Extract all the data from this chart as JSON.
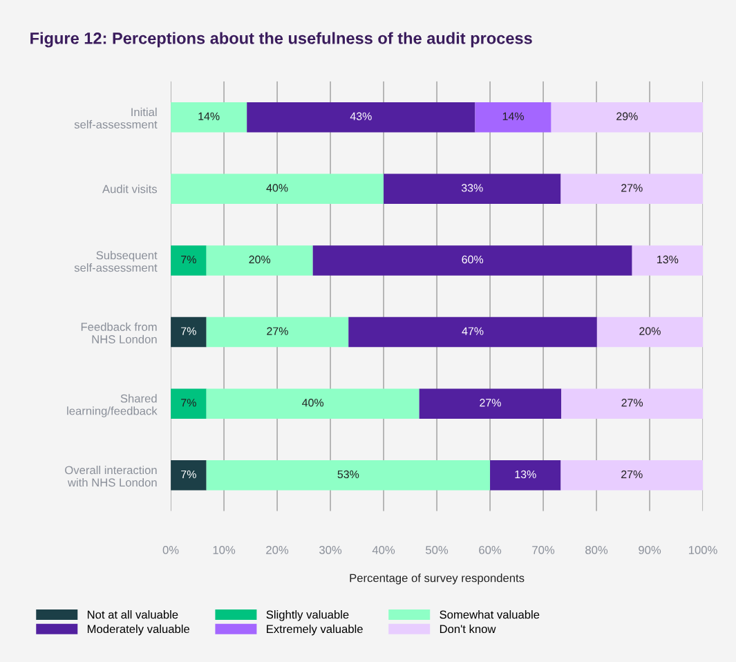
{
  "chart_data": {
    "type": "bar",
    "orientation": "horizontal",
    "stacked": true,
    "title": "Figure 12: Perceptions about the usefulness of the audit process",
    "xlabel": "Percentage of survey respondents",
    "categories": [
      "Initial\nself-assessment",
      "Audit visits",
      "Subsequent\nself-assessment",
      "Feedback from\nNHS London",
      "Shared\nlearning/feedback",
      "Overall interaction\nwith NHS London"
    ],
    "series": [
      {
        "name": "Not at all valuable",
        "color": "#1c3f47",
        "values": [
          null,
          null,
          null,
          6.7,
          null,
          6.7
        ],
        "value_labels": [
          null,
          null,
          null,
          "7%",
          null,
          "7%"
        ]
      },
      {
        "name": "Slightly valuable",
        "color": "#00c27f",
        "values": [
          null,
          null,
          6.7,
          null,
          6.7,
          null
        ],
        "value_labels": [
          null,
          null,
          "7%",
          null,
          "7%",
          null
        ]
      },
      {
        "name": "Somewhat valuable",
        "color": "#8effc6",
        "values": [
          14.3,
          40,
          20,
          26.7,
          40,
          53.3
        ],
        "value_labels": [
          "14%",
          "40%",
          "20%",
          "27%",
          "40%",
          "53%"
        ]
      },
      {
        "name": "Moderately valuable",
        "color": "#52209f",
        "values": [
          42.9,
          33.3,
          60,
          46.7,
          26.7,
          13.3
        ],
        "value_labels": [
          "43%",
          "33%",
          "60%",
          "47%",
          "27%",
          "13%"
        ]
      },
      {
        "name": "Extremely valuable",
        "color": "#a466ff",
        "values": [
          14.3,
          null,
          null,
          null,
          null,
          null
        ],
        "value_labels": [
          "14%",
          null,
          null,
          null,
          null,
          null
        ]
      },
      {
        "name": "Don't know",
        "color": "#e8cdff",
        "values": [
          28.6,
          26.7,
          13.3,
          20,
          26.7,
          26.7
        ],
        "value_labels": [
          "29%",
          "27%",
          "13%",
          "20%",
          "27%",
          "27%"
        ]
      }
    ],
    "xlim": [
      0,
      100
    ],
    "xticks": [
      {
        "value": 0,
        "label": "0%"
      },
      {
        "value": 10,
        "label": "10%"
      },
      {
        "value": 20,
        "label": "20%"
      },
      {
        "value": 30,
        "label": "30%"
      },
      {
        "value": 40,
        "label": "40%"
      },
      {
        "value": 50,
        "label": "50%"
      },
      {
        "value": 60,
        "label": "60%"
      },
      {
        "value": 70,
        "label": "70%"
      },
      {
        "value": 80,
        "label": "80%"
      },
      {
        "value": 90,
        "label": "90%"
      },
      {
        "value": 100,
        "label": "100%"
      }
    ],
    "grid": "x",
    "legend": "bottom"
  }
}
